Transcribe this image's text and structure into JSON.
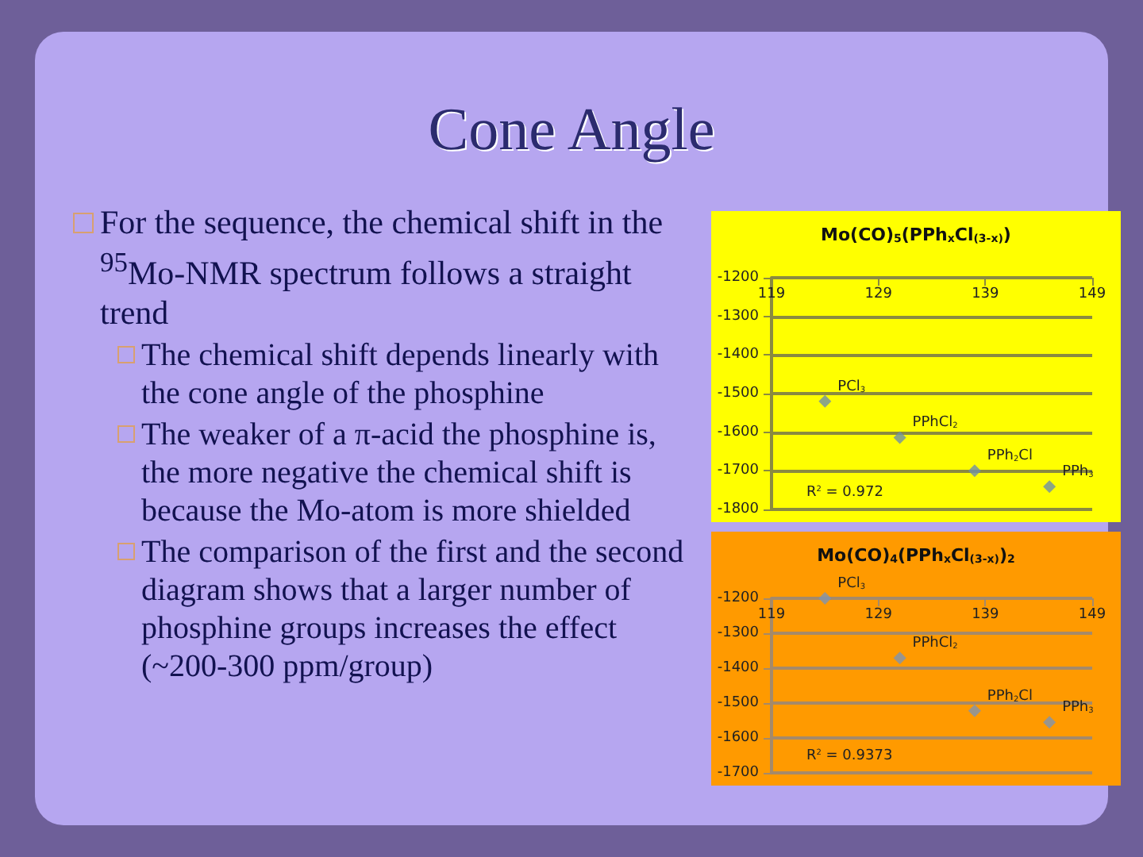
{
  "chart_data": [
    {
      "type": "other",
      "title": "Cone Angle",
      "subtitle": "For the sequence, the chemical shift in the $^{95}$Mo-NMR spectrum follows a straight trend",
      "annotations": [
        "The chemical shift depends linearly with the cone angle of the phosphine",
        "The weaker of a π-acid the phosphine is, the more negative the chemical shift is because the Mo-atom is more shielded",
        "The comparison of the first and the second diagram shows that a larger number of phosphine groups increases the effect (~200-300 ppm/group)"
      ]
    },
    {
      "type": "scatter",
      "title": "Mo(CO)$_{5}$(PPh$_{x}$Cl$_{(3-x)}$)",
      "marker": "diamond",
      "grid": "y",
      "x": [
        124,
        131,
        138,
        145
      ],
      "xlim": [
        119,
        149
      ],
      "xticks": [
        119,
        129,
        139,
        149
      ],
      "ylim": [
        -1800,
        -1200
      ],
      "yticks": [
        -1800,
        -1700,
        -1600,
        -1500,
        -1400,
        -1300,
        -1200
      ],
      "series": [
        {
          "color": "#6f8fa6",
          "values": [
            -1520,
            -1614,
            -1700,
            -1741
          ]
        }
      ],
      "annotations": [
        {
          "text": "PCl$_{3}$",
          "x": 124,
          "y": -1520
        },
        {
          "text": "PPhCl$_{2}$",
          "x": 131,
          "y": -1614
        },
        {
          "text": "PPh$_{2}$Cl",
          "x": 138,
          "y": -1700
        },
        {
          "text": "PPh$_{3}$",
          "x": 145,
          "y": -1741
        },
        "R$^{2}$ = 0.972"
      ]
    },
    {
      "type": "scatter",
      "title": "Mo(CO)$_{4}$(PPh$_{x}$Cl$_{(3-x)}$)$_{2}$",
      "marker": "diamond",
      "grid": "y",
      "x": [
        124,
        131,
        138,
        145
      ],
      "xlim": [
        119,
        149
      ],
      "xticks": [
        119,
        129,
        139,
        149
      ],
      "ylim": [
        -1700,
        -1200
      ],
      "yticks": [
        -1700,
        -1600,
        -1500,
        -1400,
        -1300,
        -1200
      ],
      "series": [
        {
          "color": "#7f93b0",
          "values": [
            -1200,
            -1371,
            -1522,
            -1555
          ]
        }
      ],
      "annotations": [
        {
          "text": "PCl$_{3}$",
          "x": 124,
          "y": -1200
        },
        {
          "text": "PPhCl$_{2}$",
          "x": 131,
          "y": -1371
        },
        {
          "text": "PPh$_{2}$Cl",
          "x": 138,
          "y": -1522
        },
        {
          "text": "PPh$_{3}$",
          "x": 145,
          "y": -1555
        },
        "R$^{2}$ = 0.9373"
      ]
    }
  ]
}
